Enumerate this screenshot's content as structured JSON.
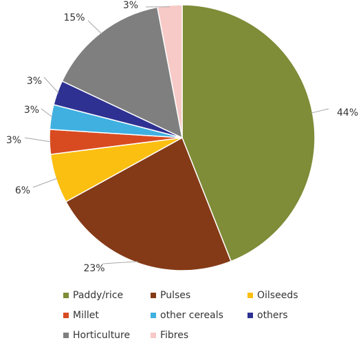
{
  "chart_data": {
    "type": "pie",
    "categories": [
      "Paddy/rice",
      "Pulses",
      "Oilseeds",
      "Millet",
      "other cereals",
      "others",
      "Horticulture",
      "Fibres"
    ],
    "values": [
      44,
      23,
      6,
      3,
      3,
      3,
      15,
      3
    ],
    "labels": [
      "44%",
      "23%",
      "6%",
      "3%",
      "3%",
      "3%",
      "15%",
      "3%"
    ],
    "colors": [
      "#7f8c38",
      "#843a17",
      "#fbbf12",
      "#d84b20",
      "#3fb0e0",
      "#2e3192",
      "#7f7f7f",
      "#f7c9c7"
    ],
    "legend_position": "bottom",
    "start_angle": "12 o'clock",
    "direction": "clockwise"
  }
}
